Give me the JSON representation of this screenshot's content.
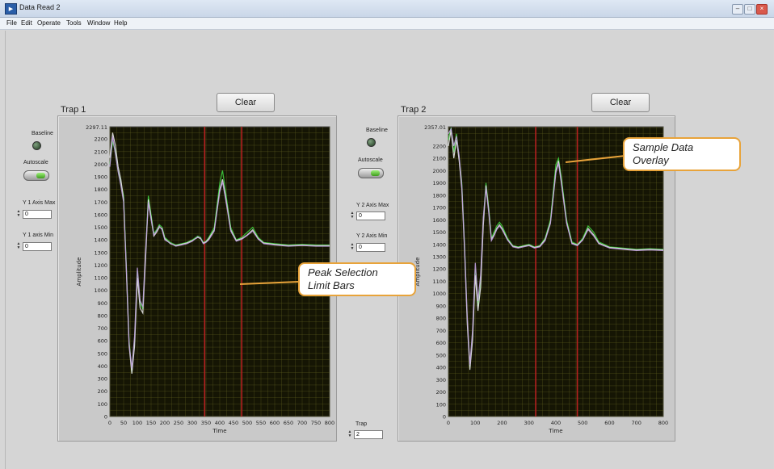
{
  "window": {
    "title": "Data Read 2"
  },
  "menu": [
    "File",
    "Edit",
    "Operate",
    "Tools",
    "Window",
    "Help"
  ],
  "clear_label": "Clear",
  "controls": {
    "baseline": "Baseline",
    "autoscale": "Autoscale",
    "y1_max_label": "Y 1 Axis Max",
    "y1_max_value": "0",
    "y1_min_label": "Y 1 axis Min",
    "y1_min_value": "0",
    "y2_max_label": "Y 2 Axis Max",
    "y2_max_value": "0",
    "y2_min_label": "Y 2 Axis Min",
    "y2_min_value": "0",
    "trap_label": "Trap",
    "trap_value": "2"
  },
  "callouts": {
    "sample_data_overlay": [
      "Sample Data",
      "Overlay"
    ],
    "peak_selection": [
      "Peak Selection",
      "Limit Bars"
    ]
  },
  "colors": {
    "plot_bg": "#151504",
    "grid": "#5a5a1e",
    "limit_bar": "#b32020",
    "callout_border": "#e8a33a"
  },
  "chart_data": [
    {
      "type": "line",
      "title": "Trap 1",
      "xlabel": "Time",
      "ylabel": "Amplitude",
      "xlim": [
        0,
        800
      ],
      "ylim": [
        0,
        2297.11
      ],
      "top_tick_label": "2297.11",
      "x_ticks": [
        0,
        50,
        100,
        150,
        200,
        250,
        300,
        350,
        400,
        450,
        500,
        550,
        600,
        650,
        700,
        750,
        800
      ],
      "y_ticks": [
        0,
        100,
        200,
        300,
        400,
        500,
        600,
        700,
        800,
        900,
        1000,
        1100,
        1200,
        1300,
        1400,
        1500,
        1600,
        1700,
        1800,
        1900,
        2000,
        2100,
        2200
      ],
      "limit_bars": [
        345,
        480
      ],
      "series_colors": [
        "#3fd03f",
        "#e8e8e8",
        "#c0a0e0",
        "#e0c080",
        "#60c0e0"
      ],
      "x": [
        0,
        10,
        20,
        30,
        40,
        50,
        60,
        70,
        80,
        90,
        100,
        110,
        120,
        130,
        140,
        150,
        160,
        170,
        180,
        190,
        200,
        220,
        240,
        260,
        280,
        300,
        320,
        330,
        340,
        350,
        360,
        380,
        400,
        410,
        420,
        440,
        460,
        480,
        500,
        520,
        540,
        560,
        600,
        650,
        700,
        750,
        800
      ],
      "series": [
        {
          "values": [
            2000,
            2180,
            2100,
            1950,
            1850,
            1750,
            1200,
            600,
            350,
            600,
            1150,
            900,
            850,
            1300,
            1750,
            1600,
            1450,
            1480,
            1520,
            1500,
            1420,
            1380,
            1360,
            1370,
            1380,
            1400,
            1430,
            1420,
            1380,
            1390,
            1420,
            1500,
            1850,
            1950,
            1800,
            1500,
            1400,
            1420,
            1460,
            1500,
            1420,
            1380,
            1370,
            1360,
            1365,
            1360,
            1360
          ]
        },
        {
          "values": [
            2050,
            2250,
            2150,
            1980,
            1880,
            1720,
            1150,
            560,
            340,
            560,
            1100,
            860,
            820,
            1250,
            1720,
            1580,
            1430,
            1460,
            1500,
            1490,
            1410,
            1370,
            1355,
            1365,
            1375,
            1395,
            1420,
            1410,
            1375,
            1385,
            1410,
            1480,
            1800,
            1880,
            1760,
            1480,
            1395,
            1410,
            1440,
            1480,
            1410,
            1375,
            1365,
            1355,
            1360,
            1355,
            1355
          ]
        },
        {
          "values": [
            1980,
            2220,
            2080,
            1940,
            1830,
            1700,
            1180,
            580,
            380,
            640,
            1180,
            920,
            870,
            1320,
            1700,
            1560,
            1440,
            1470,
            1510,
            1480,
            1400,
            1375,
            1350,
            1360,
            1370,
            1390,
            1425,
            1415,
            1370,
            1380,
            1400,
            1470,
            1780,
            1860,
            1740,
            1470,
            1390,
            1405,
            1435,
            1470,
            1405,
            1370,
            1360,
            1350,
            1355,
            1350,
            1350
          ]
        }
      ]
    },
    {
      "type": "line",
      "title": "Trap 2",
      "xlabel": "Time",
      "ylabel": "Amplitude",
      "xlim": [
        0,
        800
      ],
      "ylim": [
        0,
        2357.01
      ],
      "top_tick_label": "2357.01",
      "x_ticks": [
        0,
        100,
        200,
        300,
        400,
        500,
        600,
        700,
        800
      ],
      "y_ticks": [
        0,
        100,
        200,
        300,
        400,
        500,
        600,
        700,
        800,
        900,
        1000,
        1100,
        1200,
        1300,
        1400,
        1500,
        1600,
        1700,
        1800,
        1900,
        2000,
        2100,
        2200
      ],
      "limit_bars": [
        325,
        480
      ],
      "series_colors": [
        "#3fd03f",
        "#e8e8e8",
        "#c0a0e0",
        "#e0c080",
        "#60c0e0"
      ],
      "x": [
        0,
        10,
        20,
        30,
        40,
        50,
        60,
        70,
        80,
        90,
        100,
        110,
        120,
        130,
        140,
        150,
        160,
        170,
        180,
        190,
        200,
        220,
        240,
        260,
        280,
        300,
        320,
        340,
        360,
        380,
        400,
        410,
        420,
        440,
        460,
        480,
        500,
        520,
        540,
        560,
        600,
        650,
        700,
        750,
        800
      ],
      "series": [
        {
          "values": [
            2250,
            2350,
            2150,
            2300,
            2100,
            1900,
            1400,
            800,
            400,
            650,
            1200,
            900,
            1100,
            1600,
            1900,
            1700,
            1450,
            1500,
            1550,
            1580,
            1550,
            1450,
            1390,
            1380,
            1390,
            1400,
            1380,
            1390,
            1450,
            1600,
            2050,
            2100,
            1950,
            1600,
            1420,
            1400,
            1450,
            1550,
            1500,
            1420,
            1380,
            1370,
            1360,
            1365,
            1360
          ]
        },
        {
          "values": [
            2200,
            2330,
            2100,
            2250,
            2080,
            1850,
            1350,
            760,
            380,
            620,
            1150,
            860,
            1050,
            1550,
            1880,
            1680,
            1440,
            1480,
            1530,
            1560,
            1530,
            1440,
            1385,
            1375,
            1385,
            1395,
            1375,
            1385,
            1440,
            1580,
            2000,
            2080,
            1920,
            1580,
            1410,
            1395,
            1440,
            1530,
            1480,
            1410,
            1375,
            1365,
            1355,
            1360,
            1355
          ]
        },
        {
          "values": [
            2300,
            2340,
            2200,
            2280,
            2120,
            1880,
            1380,
            820,
            420,
            700,
            1250,
            940,
            1150,
            1620,
            1860,
            1660,
            1430,
            1470,
            1520,
            1550,
            1520,
            1435,
            1380,
            1370,
            1380,
            1390,
            1370,
            1380,
            1430,
            1570,
            1980,
            2060,
            1900,
            1570,
            1405,
            1390,
            1435,
            1520,
            1470,
            1405,
            1370,
            1360,
            1350,
            1355,
            1350
          ]
        }
      ]
    }
  ]
}
